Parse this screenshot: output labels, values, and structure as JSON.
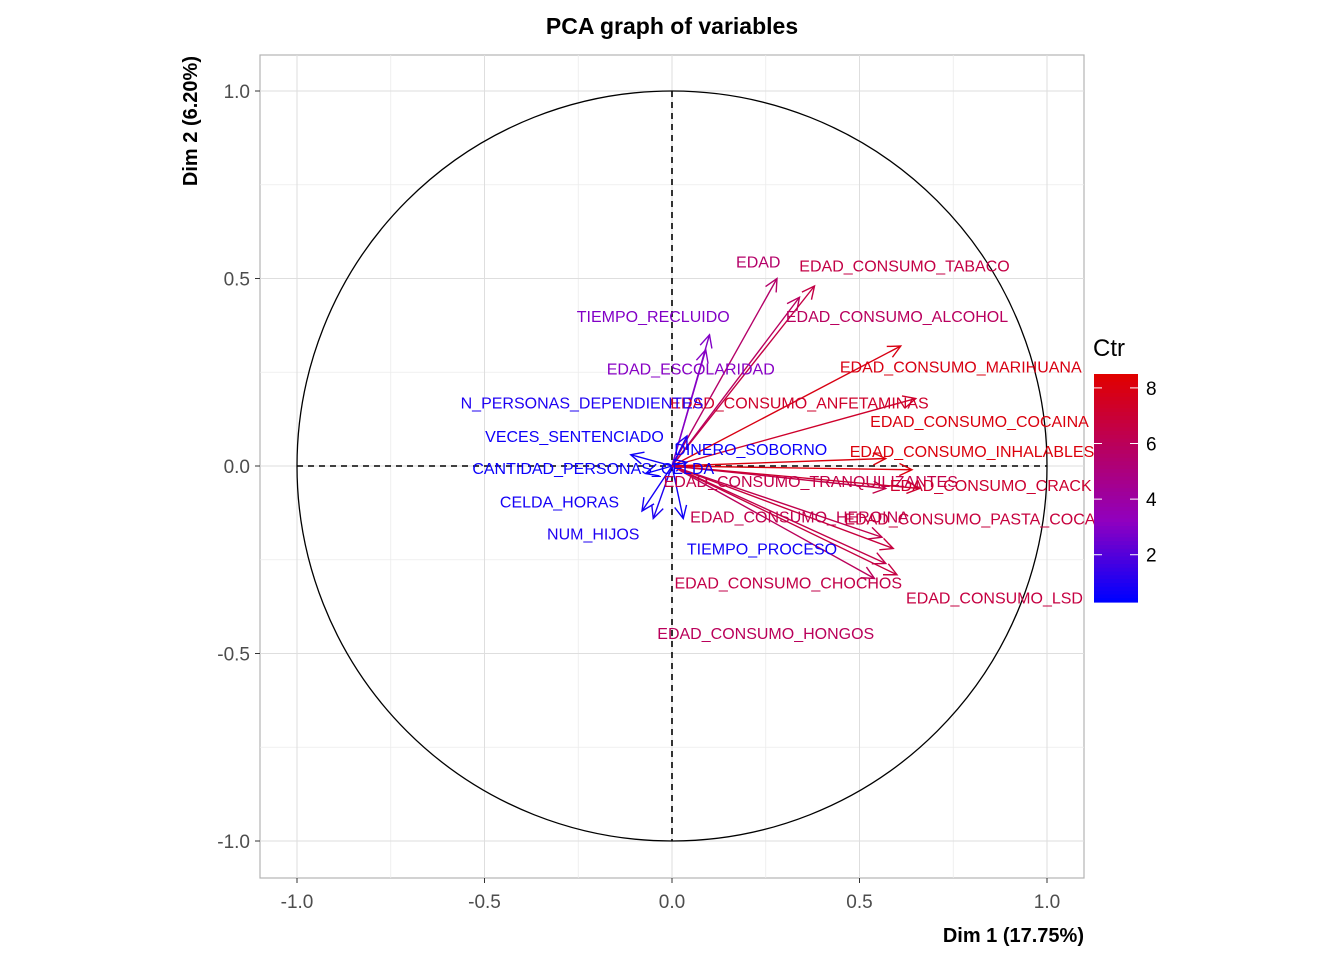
{
  "chart_data": {
    "type": "scatter",
    "subtype": "pca-variable-correlation-circle",
    "title": "PCA graph of variables",
    "xlabel": "Dim 1 (17.75%)",
    "ylabel": "Dim 2 (6.20%)",
    "xlim": [
      -1.1,
      1.1
    ],
    "ylim": [
      -1.1,
      1.1
    ],
    "x_ticks": [
      -1.0,
      -0.5,
      0.0,
      0.5,
      1.0
    ],
    "y_ticks": [
      -1.0,
      -0.5,
      0.0,
      0.5,
      1.0
    ],
    "x_tick_labels": [
      "-1.0",
      "-0.5",
      "0.0",
      "0.5",
      "1.0"
    ],
    "y_tick_labels": [
      "-1.0",
      "-0.5",
      "0.0",
      "0.5",
      "1.0"
    ],
    "grid": true,
    "unit_circle": true,
    "legend": {
      "title": "Ctr",
      "type": "colorbar",
      "position": "right",
      "range": [
        0.3,
        8.5
      ],
      "ticks": [
        2,
        4,
        6,
        8
      ],
      "tick_labels": [
        "2",
        "4",
        "6",
        "8"
      ],
      "low_color": "#0000ff",
      "high_color": "#e00000",
      "mid_color": "#9000c0"
    },
    "variables": [
      {
        "name": "EDAD",
        "x": 0.28,
        "y": 0.5,
        "ctr": 5.6
      },
      {
        "name": "EDAD_CONSUMO_TABACO",
        "x": 0.38,
        "y": 0.48,
        "ctr": 6.6
      },
      {
        "name": "TIEMPO_RECLUIDO",
        "x": 0.1,
        "y": 0.35,
        "ctr": 2.9
      },
      {
        "name": "EDAD_CONSUMO_ALCOHOL",
        "x": 0.34,
        "y": 0.45,
        "ctr": 5.9
      },
      {
        "name": "EDAD_ESCOLARIDAD",
        "x": 0.09,
        "y": 0.31,
        "ctr": 3.0
      },
      {
        "name": "EDAD_CONSUMO_MARIHUANA",
        "x": 0.61,
        "y": 0.32,
        "ctr": 8.0
      },
      {
        "name": "EDAD_CONSUMO_ANFETAMINAS",
        "x": 0.65,
        "y": 0.18,
        "ctr": 7.3
      },
      {
        "name": "N_PERSONAS_DEPENDIENTES",
        "x": 0.04,
        "y": 0.08,
        "ctr": 0.9
      },
      {
        "name": "EDAD_CONSUMO_COCAINA",
        "x": 0.57,
        "y": 0.02,
        "ctr": 8.1
      },
      {
        "name": "VECES_SENTENCIADO",
        "x": -0.11,
        "y": 0.03,
        "ctr": 0.6
      },
      {
        "name": "DINERO_SOBORNO",
        "x": 0.04,
        "y": 0.01,
        "ctr": 0.5
      },
      {
        "name": "EDAD_CONSUMO_INHALABLES",
        "x": 0.64,
        "y": -0.01,
        "ctr": 8.2
      },
      {
        "name": "CANTIDAD_PERSONAS_CELDA",
        "x": -0.07,
        "y": -0.02,
        "ctr": 0.5
      },
      {
        "name": "EDAD_CONSUMO_TRANQUILIZANTES",
        "x": 0.57,
        "y": -0.06,
        "ctr": 6.5
      },
      {
        "name": "EDAD_CONSUMO_CRACK",
        "x": 0.66,
        "y": -0.06,
        "ctr": 7.2
      },
      {
        "name": "CELDA_HORAS",
        "x": -0.08,
        "y": -0.12,
        "ctr": 0.7
      },
      {
        "name": "EDAD_CONSUMO_HEROINA",
        "x": 0.56,
        "y": -0.19,
        "ctr": 6.4
      },
      {
        "name": "EDAD_CONSUMO_PASTA_COCAINA",
        "x": 0.59,
        "y": -0.22,
        "ctr": 6.8
      },
      {
        "name": "NUM_HIJOS",
        "x": -0.05,
        "y": -0.14,
        "ctr": 0.9
      },
      {
        "name": "TIEMPO_PROCESO",
        "x": 0.03,
        "y": -0.14,
        "ctr": 0.6
      },
      {
        "name": "EDAD_CONSUMO_CHOCHOS",
        "x": 0.57,
        "y": -0.26,
        "ctr": 6.5
      },
      {
        "name": "EDAD_CONSUMO_LSD",
        "x": 0.6,
        "y": -0.29,
        "ctr": 6.7
      },
      {
        "name": "EDAD_CONSUMO_HONGOS",
        "x": 0.54,
        "y": -0.3,
        "ctr": 6.0
      }
    ]
  }
}
